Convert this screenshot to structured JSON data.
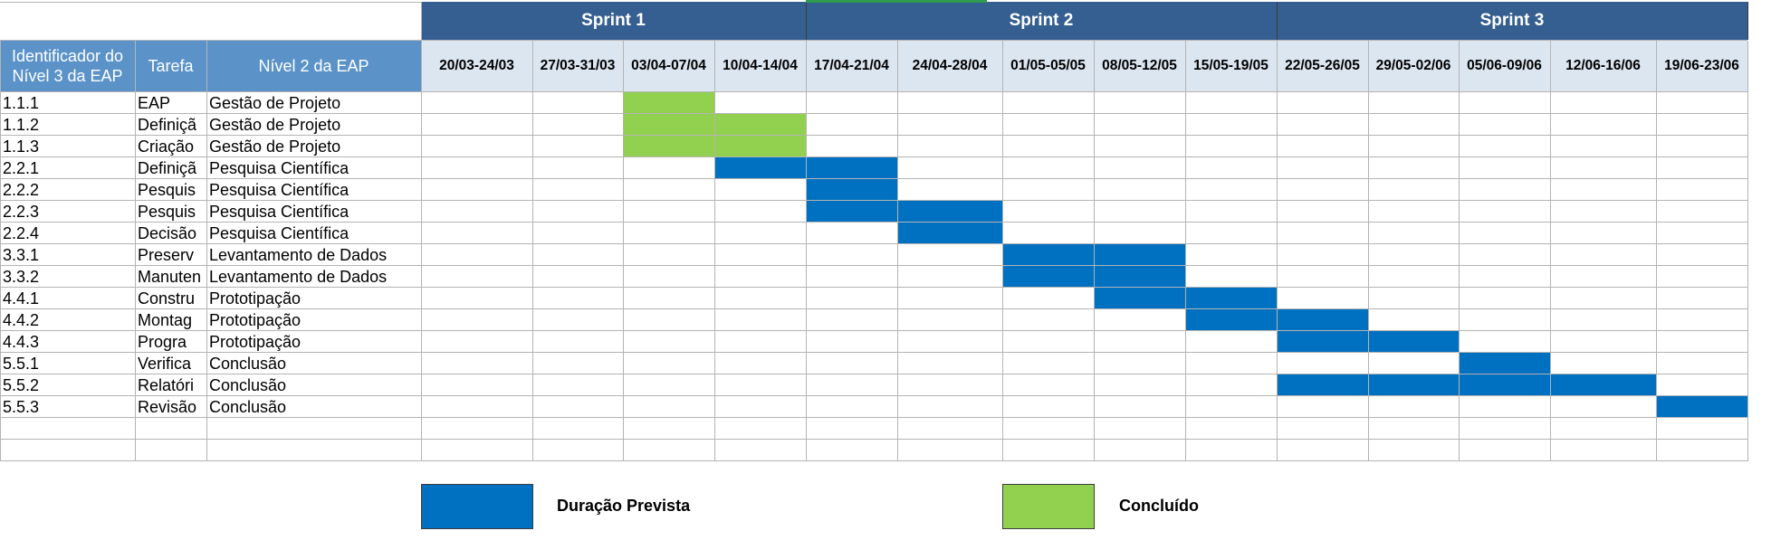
{
  "sprints": [
    {
      "label": "Sprint 1",
      "first_week": 0,
      "last_week": 3
    },
    {
      "label": "Sprint 2",
      "first_week": 4,
      "last_week": 8
    },
    {
      "label": "Sprint 3",
      "first_week": 9,
      "last_week": 13
    }
  ],
  "headers": {
    "id": "Identificador do Nível 3 da EAP",
    "task": "Tarefa",
    "level2": "Nível 2 da EAP"
  },
  "weeks": [
    "20/03-24/03",
    "27/03-31/03",
    "03/04-07/04",
    "10/04-14/04",
    "17/04-21/04",
    "24/04-28/04",
    "01/05-05/05",
    "08/05-12/05",
    "15/05-19/05",
    "22/05-26/05",
    "29/05-02/06",
    "05/06-09/06",
    "12/06-16/06",
    "19/06-23/06"
  ],
  "rows": [
    {
      "id": "1.1.1",
      "task": "EAP",
      "level2": "Gestão de Projeto",
      "completed": [
        2
      ],
      "planned": []
    },
    {
      "id": "1.1.2",
      "task": "Definiçã",
      "level2": "Gestão de Projeto",
      "completed": [
        2,
        3
      ],
      "planned": []
    },
    {
      "id": "1.1.3",
      "task": "Criação",
      "level2": "Gestão de Projeto",
      "completed": [
        2,
        3
      ],
      "planned": []
    },
    {
      "id": "2.2.1",
      "task": "Definiçã",
      "level2": "Pesquisa Científica",
      "completed": [],
      "planned": [
        3,
        4
      ]
    },
    {
      "id": "2.2.2",
      "task": "Pesquis",
      "level2": "Pesquisa Científica",
      "completed": [],
      "planned": [
        4
      ]
    },
    {
      "id": "2.2.3",
      "task": "Pesquis",
      "level2": "Pesquisa Científica",
      "completed": [],
      "planned": [
        4,
        5
      ]
    },
    {
      "id": "2.2.4",
      "task": "Decisão",
      "level2": "Pesquisa Científica",
      "completed": [],
      "planned": [
        5
      ]
    },
    {
      "id": "3.3.1",
      "task": "Preserv",
      "level2": "Levantamento de Dados",
      "completed": [],
      "planned": [
        6,
        7
      ]
    },
    {
      "id": "3.3.2",
      "task": "Manuten",
      "level2": "Levantamento de Dados",
      "completed": [],
      "planned": [
        6,
        7
      ]
    },
    {
      "id": "4.4.1",
      "task": "Constru",
      "level2": "Prototipação",
      "completed": [],
      "planned": [
        7,
        8
      ]
    },
    {
      "id": "4.4.2",
      "task": "Montag",
      "level2": "Prototipação",
      "completed": [],
      "planned": [
        8,
        9
      ]
    },
    {
      "id": "4.4.3",
      "task": "Progra",
      "level2": "Prototipação",
      "completed": [],
      "planned": [
        9,
        10
      ]
    },
    {
      "id": "5.5.1",
      "task": "Verifica",
      "level2": "Conclusão",
      "completed": [],
      "planned": [
        11
      ]
    },
    {
      "id": "5.5.2",
      "task": "Relatóri",
      "level2": "Conclusão",
      "completed": [],
      "planned": [
        9,
        10,
        11,
        12
      ]
    },
    {
      "id": "5.5.3",
      "task": "Revisão",
      "level2": "Conclusão",
      "completed": [],
      "planned": [
        13
      ]
    },
    {
      "id": "",
      "task": "",
      "level2": "",
      "completed": [],
      "planned": []
    },
    {
      "id": "",
      "task": "",
      "level2": "",
      "completed": [],
      "planned": []
    }
  ],
  "legend": {
    "planned_label": "Duração Prevista",
    "completed_label": "Concluído"
  },
  "colors": {
    "planned": "#0070c0",
    "completed": "#92d050",
    "sprint_header": "#355e91",
    "left_header": "#5b93c9",
    "date_header": "#dce6f1"
  }
}
